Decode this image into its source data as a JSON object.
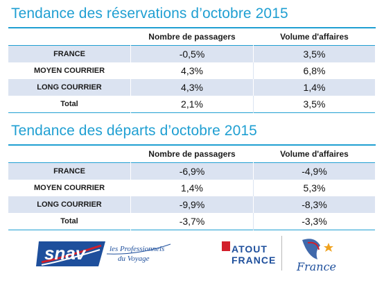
{
  "reservations": {
    "title": "Tendance des réservations d’octobre 2015",
    "headers": [
      "",
      "Nombre de passagers",
      "Volume d'affaires"
    ],
    "rows": [
      {
        "label": "FRANCE",
        "passagers": "-0,5%",
        "volume": "3,5%"
      },
      {
        "label": "MOYEN COURRIER",
        "passagers": "4,3%",
        "volume": "6,8%"
      },
      {
        "label": "LONG COURRIER",
        "passagers": "4,3%",
        "volume": "1,4%"
      },
      {
        "label": "Total",
        "passagers": "2,1%",
        "volume": "3,5%"
      }
    ]
  },
  "departs": {
    "title": "Tendance des départs d’octobre 2015",
    "headers": [
      "",
      "Nombre de passagers",
      "Volume d'affaires"
    ],
    "rows": [
      {
        "label": "FRANCE",
        "passagers": "-6,9%",
        "volume": "-4,9%"
      },
      {
        "label": "MOYEN COURRIER",
        "passagers": "1,4%",
        "volume": "5,3%"
      },
      {
        "label": "LONG COURRIER",
        "passagers": "-9,9%",
        "volume": "-8,3%"
      },
      {
        "label": "Total",
        "passagers": "-3,7%",
        "volume": "-3,3%"
      }
    ]
  },
  "logos": {
    "snav_text": "snav",
    "snav_tagline_1": "les Professionnels",
    "snav_tagline_2": "du Voyage",
    "atout_line1": "ATOUT",
    "atout_line2": "FRANCE",
    "france_script": "France"
  },
  "colors": {
    "title": "#1f9fd2",
    "shade": "#dbe3f1",
    "snav_blue": "#1e4f9c",
    "atout_red": "#d21f2b"
  }
}
